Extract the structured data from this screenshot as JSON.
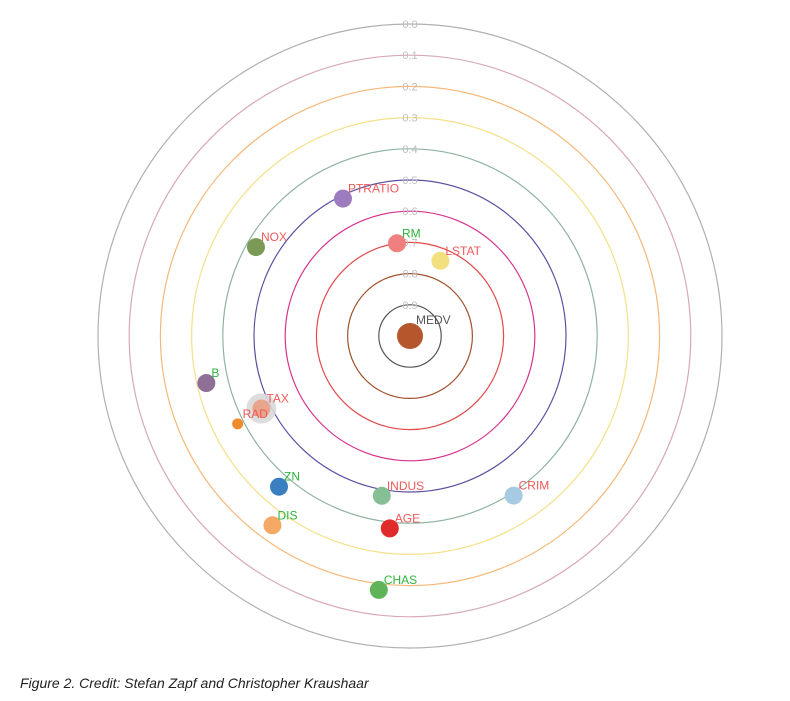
{
  "chart_data": {
    "type": "radial-scatter",
    "center_label": "MEDV",
    "ring_values": [
      "0.0",
      "0.1",
      "0.2",
      "0.3",
      "0.4",
      "0.5",
      "0.6",
      "0.7",
      "0.8",
      "0.9"
    ],
    "ring_colors": [
      "#b0b0b0",
      "#d7a9b4",
      "#f5b87a",
      "#f6e08a",
      "#8fb3a1",
      "#5e4fa2",
      "#d6338f",
      "#e34a4a",
      "#a0522d",
      "#555555"
    ],
    "nodes": [
      {
        "name": "MEDV",
        "value": 1.0,
        "angle_deg": 0,
        "color": "#b5562c",
        "label_color": "#555555"
      },
      {
        "name": "LSTAT",
        "value": 0.74,
        "angle_deg": 22,
        "color": "#f2e07e",
        "label_color": "#f05a5a"
      },
      {
        "name": "RM",
        "value": 0.7,
        "angle_deg": -8,
        "color": "#f08080",
        "label_color": "#2cb43c"
      },
      {
        "name": "PTRATIO",
        "value": 0.51,
        "angle_deg": -26,
        "color": "#9e7bbf",
        "label_color": "#f05a5a"
      },
      {
        "name": "NOX",
        "value": 0.43,
        "angle_deg": -60,
        "color": "#7a9a56",
        "label_color": "#f05a5a"
      },
      {
        "name": "B",
        "value": 0.33,
        "angle_deg": -103,
        "color": "#8e6f96",
        "label_color": "#2cb43c"
      },
      {
        "name": "TAX",
        "value": 0.47,
        "angle_deg": -116,
        "color": "#e8a48c",
        "label_color": "#f05a5a",
        "highlight": true
      },
      {
        "name": "RAD",
        "value": 0.38,
        "angle_deg": -117,
        "color": "#f08b2c",
        "label_color": "#f05a5a"
      },
      {
        "name": "ZN",
        "value": 0.36,
        "angle_deg": -139,
        "color": "#3a7fc1",
        "label_color": "#2cb43c"
      },
      {
        "name": "DIS",
        "value": 0.25,
        "angle_deg": -144,
        "color": "#f6a865",
        "label_color": "#2cb43c"
      },
      {
        "name": "INDUS",
        "value": 0.48,
        "angle_deg": -170,
        "color": "#86bf93",
        "label_color": "#f05a5a"
      },
      {
        "name": "AGE",
        "value": 0.38,
        "angle_deg": -174,
        "color": "#e02b2b",
        "label_color": "#f05a5a"
      },
      {
        "name": "CRIM",
        "value": 0.39,
        "angle_deg": 147,
        "color": "#a7c9e2",
        "label_color": "#f05a5a"
      },
      {
        "name": "CHAS",
        "value": 0.18,
        "angle_deg": -173,
        "color": "#5fb45a",
        "label_color": "#2cb43c"
      }
    ]
  },
  "caption": "Figure 2. Credit: Stefan Zapf and Christopher Kraushaar"
}
